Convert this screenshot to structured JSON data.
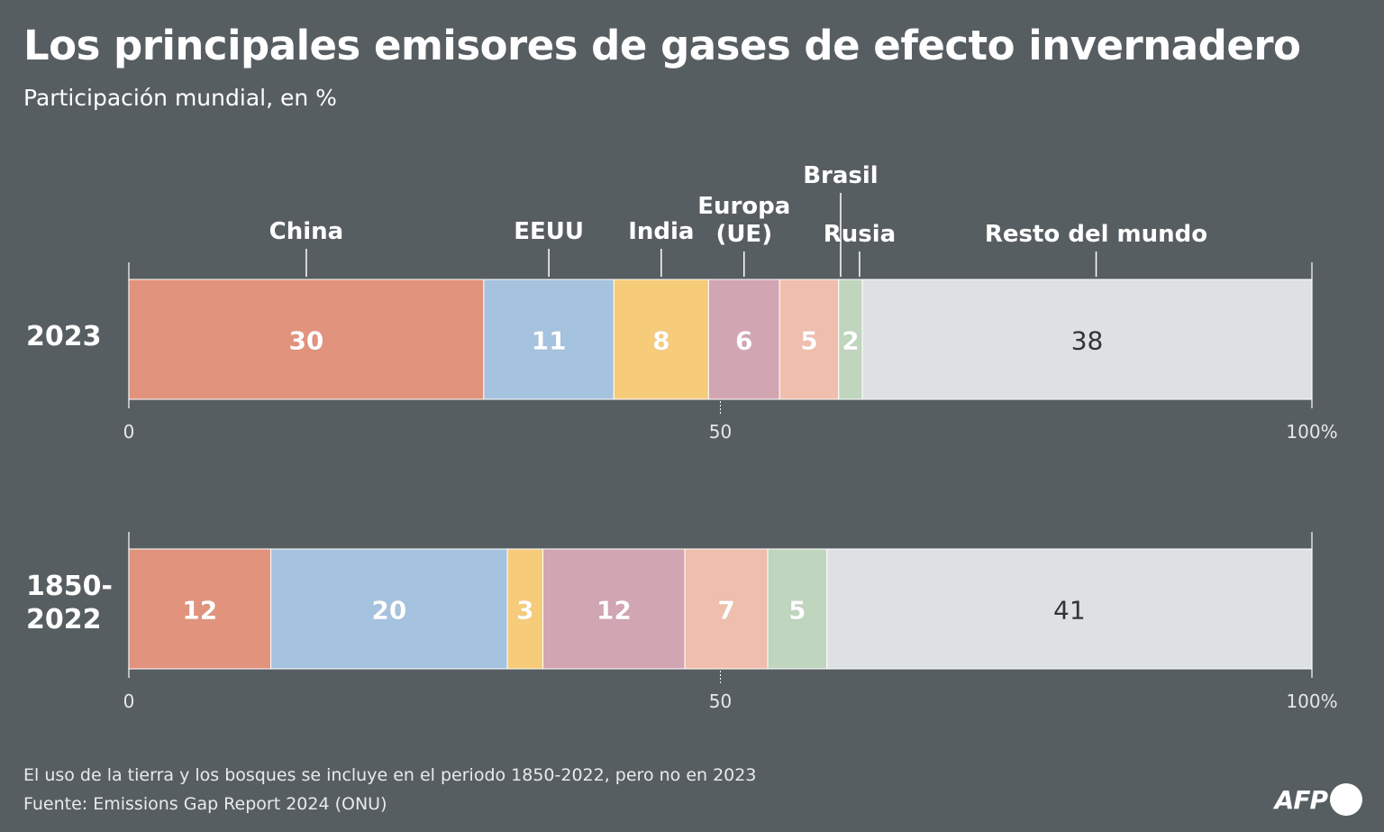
{
  "title": "Los principales emisores de gases de efecto invernadero",
  "subtitle": "Participación mundial, en %",
  "chart_data": {
    "type": "bar",
    "orientation": "horizontal-stacked",
    "categories": [
      "China",
      "EEUU",
      "India",
      "Europa (UE)",
      "Brasil",
      "Rusia",
      "Resto del mundo"
    ],
    "category_labels": [
      [
        "China"
      ],
      [
        "EEUU"
      ],
      [
        "India"
      ],
      [
        "Europa",
        "(UE)"
      ],
      [
        "Brasil"
      ],
      [
        "Rusia"
      ],
      [
        "Resto del mundo"
      ]
    ],
    "colors": [
      "#e2937d",
      "#a5c2de",
      "#f6cb7a",
      "#d1a5b2",
      "#f0bead",
      "#bfd5bd",
      "#dde1e3"
    ],
    "label_colors": [
      "#ffffff",
      "#ffffff",
      "#ffffff",
      "#ffffff",
      "#ffffff",
      "#ffffff",
      "#333333"
    ],
    "series": [
      {
        "name": "2023",
        "label_lines": [
          "2023"
        ],
        "values": [
          30,
          11,
          8,
          6,
          5,
          2,
          38
        ]
      },
      {
        "name": "1850-2022",
        "label_lines": [
          "1850-",
          "2022"
        ],
        "values": [
          12,
          20,
          3,
          12,
          7,
          5,
          41
        ]
      }
    ],
    "xlim": [
      0,
      100
    ],
    "ticks": [
      {
        "value": 0,
        "label": "0"
      },
      {
        "value": 50,
        "label": "50"
      },
      {
        "value": 100,
        "label": "100%"
      }
    ]
  },
  "notes": [
    "El uso de la tierra y los bosques se incluye en el periodo 1850-2022, pero no en 2023",
    "Fuente: Emissions Gap Report 2024 (ONU)"
  ],
  "logo": "AFP"
}
